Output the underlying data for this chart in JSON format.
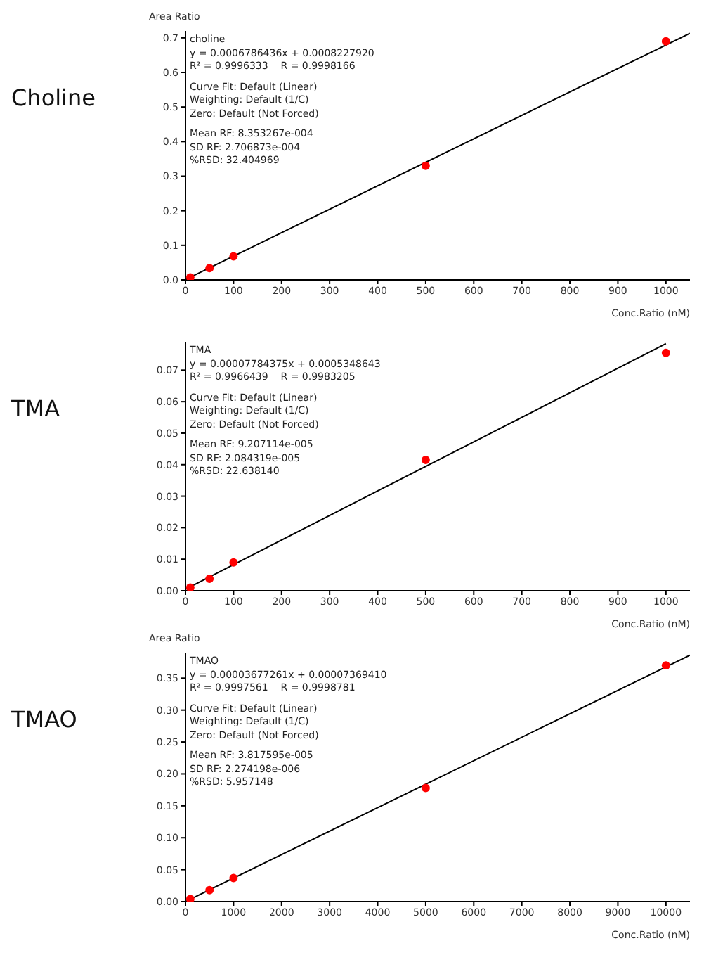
{
  "chart_data": [
    {
      "type": "scatter",
      "title": "Choline",
      "ylabel": "Area Ratio",
      "xlabel": "Conc.Ratio (nM)",
      "xlim": [
        0,
        1050
      ],
      "xticks": [
        0,
        100,
        200,
        300,
        400,
        500,
        600,
        700,
        800,
        900,
        1000
      ],
      "ylim": [
        0,
        0.72
      ],
      "yticks": [
        {
          "value": 0,
          "label": "0.0"
        },
        0.1,
        0.2,
        0.3,
        0.4,
        0.5,
        0.6,
        0.7
      ],
      "grid": false,
      "annotations": [
        "choline",
        "y = 0.0006786436x + 0.0008227920",
        "R² = 0.9996333    R = 0.9998166",
        "Curve Fit: Default (Linear)",
        "Weighting: Default (1/C)",
        "Zero: Default (Not Forced)",
        "Mean RF: 8.353267e-004",
        "SD RF: 2.706873e-004",
        "%RSD: 32.404969"
      ],
      "series": [
        {
          "type": "line",
          "color": "#000000",
          "marker": "none",
          "x": [
            0,
            1050
          ],
          "values": [
            0.001,
            0.713
          ]
        },
        {
          "color": "#ff0000",
          "marker": "circle",
          "x": [
            10,
            50,
            100,
            500,
            1000
          ],
          "values": [
            0.007,
            0.034,
            0.068,
            0.33,
            0.69
          ]
        }
      ]
    },
    {
      "type": "scatter",
      "title": "TMA",
      "xlabel": "Conc.Ratio (nM)",
      "xlim": [
        0,
        1050
      ],
      "xticks": [
        0,
        100,
        200,
        300,
        400,
        500,
        600,
        700,
        800,
        900,
        1000
      ],
      "ylim": [
        0,
        0.079
      ],
      "yticks": [
        {
          "value": 0,
          "label": "0.00"
        },
        0.01,
        0.02,
        0.03,
        0.04,
        0.05,
        0.06,
        0.07
      ],
      "grid": false,
      "annotations": [
        "TMA",
        "y = 0.00007784375x + 0.0005348643",
        "R² = 0.9966439    R = 0.9983205",
        "Curve Fit: Default (Linear)",
        "Weighting: Default (1/C)",
        "Zero: Default (Not Forced)",
        "Mean RF: 9.207114e-005",
        "SD RF: 2.084319e-005",
        "%RSD: 22.638140"
      ],
      "series": [
        {
          "type": "line",
          "color": "#000000",
          "marker": "none",
          "x": [
            0,
            1000
          ],
          "values": [
            0.0005,
            0.0784
          ]
        },
        {
          "color": "#ff0000",
          "marker": "circle",
          "x": [
            10,
            50,
            100,
            500,
            1000
          ],
          "values": [
            0.001,
            0.0038,
            0.009,
            0.0415,
            0.0755
          ]
        }
      ]
    },
    {
      "type": "scatter",
      "title": "TMAO",
      "ylabel": "Area Ratio",
      "xlabel": "Conc.Ratio (nM)",
      "xlim": [
        0,
        10500
      ],
      "xticks": [
        0,
        1000,
        2000,
        3000,
        4000,
        5000,
        6000,
        7000,
        8000,
        9000,
        10000
      ],
      "ylim": [
        0,
        0.39
      ],
      "yticks": [
        {
          "value": 0,
          "label": "0.00"
        },
        0.05,
        {
          "value": 0.1,
          "label": "0.10"
        },
        0.15,
        {
          "value": 0.2,
          "label": "0.20"
        },
        0.25,
        {
          "value": 0.3,
          "label": "0.30"
        },
        0.35
      ],
      "grid": false,
      "annotations": [
        "TMAO",
        "y = 0.00003677261x + 0.00007369410",
        "R² = 0.9997561    R = 0.9998781",
        "Curve Fit: Default (Linear)",
        "Weighting: Default (1/C)",
        "Zero: Default (Not Forced)",
        "Mean RF: 3.817595e-005",
        "SD RF: 2.274198e-006",
        "%RSD: 5.957148"
      ],
      "series": [
        {
          "type": "line",
          "color": "#000000",
          "marker": "none",
          "x": [
            0,
            10500
          ],
          "values": [
            0,
            0.386
          ]
        },
        {
          "color": "#ff0000",
          "marker": "circle",
          "x": [
            100,
            500,
            1000,
            5000,
            10000
          ],
          "values": [
            0.004,
            0.018,
            0.037,
            0.178,
            0.37
          ]
        }
      ]
    }
  ]
}
